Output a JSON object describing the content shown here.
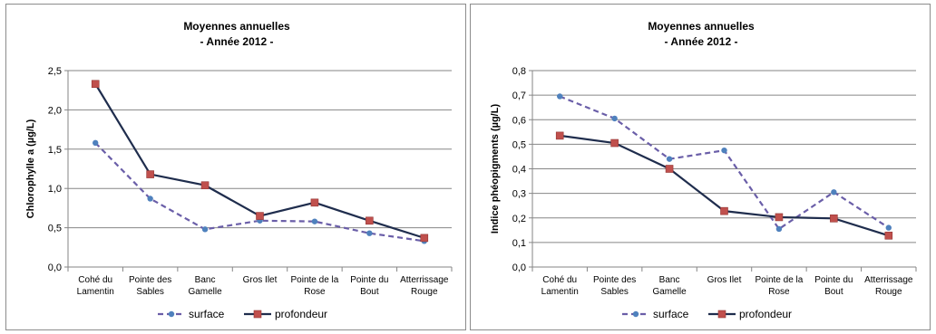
{
  "chart_data": [
    {
      "type": "line",
      "title": "Moyennes annuelles",
      "subtitle": "- Année 2012 -",
      "ylabel": "Chlorophylle a (µg/L)",
      "ylim": [
        0,
        2.5
      ],
      "yticks": [
        "0,0",
        "0,5",
        "1,0",
        "1,5",
        "2,0",
        "2,5"
      ],
      "categories": [
        [
          "Cohé du",
          "Lamentin"
        ],
        [
          "Pointe des",
          "Sables"
        ],
        [
          "Banc",
          "Gamelle"
        ],
        [
          "Gros Ilet"
        ],
        [
          "Pointe de la",
          "Rose"
        ],
        [
          "Pointe du",
          "Bout"
        ],
        [
          "Atterrissage",
          "Rouge"
        ]
      ],
      "series": [
        {
          "name": "surface",
          "color": "#6a5ea8",
          "marker_color": "#4f81bd",
          "dashed": true,
          "values": [
            1.58,
            0.87,
            0.48,
            0.59,
            0.58,
            0.43,
            0.33
          ]
        },
        {
          "name": "profondeur",
          "color": "#1f2d4d",
          "marker_color": "#c0504d",
          "dashed": false,
          "values": [
            2.33,
            1.18,
            1.04,
            0.65,
            0.82,
            0.59,
            0.37
          ]
        }
      ],
      "grid": true,
      "legend": "bottom"
    },
    {
      "type": "line",
      "title": "Moyennes annuelles",
      "subtitle": "- Année 2012 -",
      "ylabel": "Indice phéopigments (µg/L)",
      "ylim": [
        0,
        0.8
      ],
      "yticks": [
        "0,0",
        "0,1",
        "0,2",
        "0,3",
        "0,4",
        "0,5",
        "0,6",
        "0,7",
        "0,8"
      ],
      "categories": [
        [
          "Cohé du",
          "Lamentin"
        ],
        [
          "Pointe des",
          "Sables"
        ],
        [
          "Banc",
          "Gamelle"
        ],
        [
          "Gros Ilet"
        ],
        [
          "Pointe de la",
          "Rose"
        ],
        [
          "Pointe du",
          "Bout"
        ],
        [
          "Atterrissage",
          "Rouge"
        ]
      ],
      "series": [
        {
          "name": "surface",
          "color": "#6a5ea8",
          "marker_color": "#4f81bd",
          "dashed": true,
          "values": [
            0.695,
            0.605,
            0.44,
            0.475,
            0.155,
            0.305,
            0.16
          ]
        },
        {
          "name": "profondeur",
          "color": "#1f2d4d",
          "marker_color": "#c0504d",
          "dashed": false,
          "values": [
            0.535,
            0.505,
            0.4,
            0.228,
            0.203,
            0.198,
            0.128
          ]
        }
      ],
      "grid": true,
      "legend": "bottom"
    }
  ]
}
